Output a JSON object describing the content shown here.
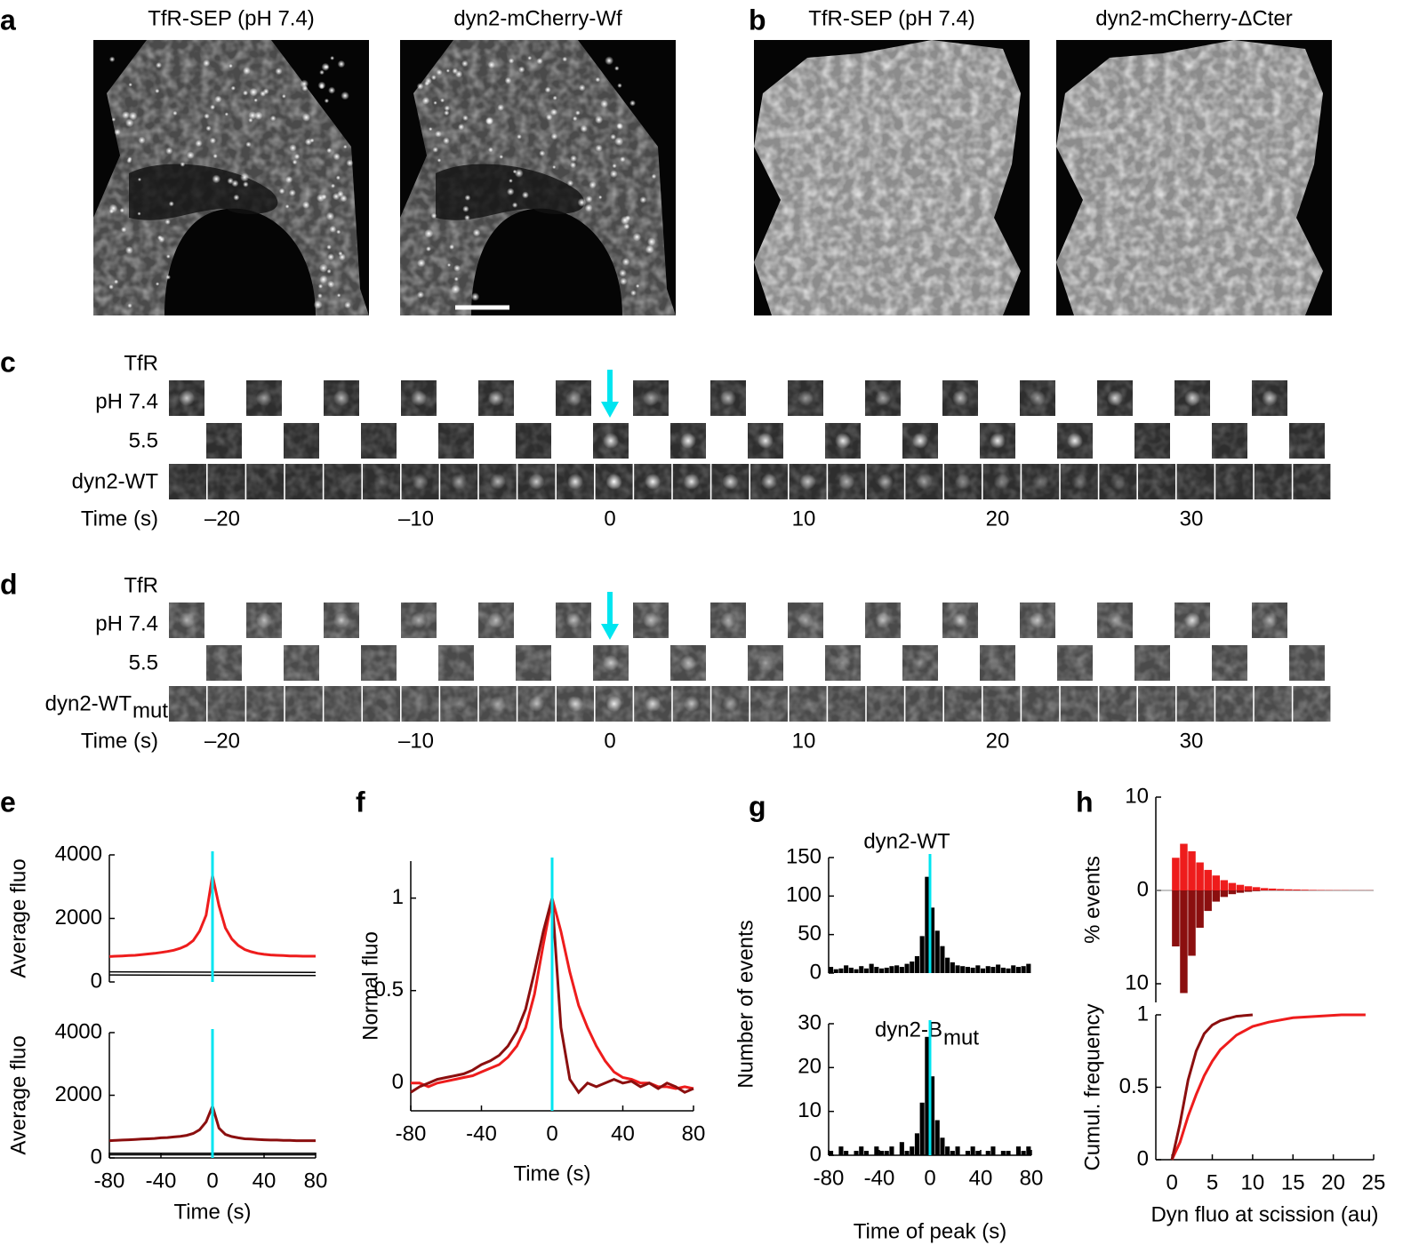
{
  "figure": {
    "panel_labels": [
      "a",
      "b",
      "c",
      "d",
      "e",
      "f",
      "g",
      "h"
    ],
    "images": [
      {
        "title": "TfR-SEP (pH 7.4)",
        "color": "#1f9e3a"
      },
      {
        "title": "dyn2-mCherry-Wf",
        "color": "#ee1c1c"
      },
      {
        "title": "TfR-SEP (pH 7.4)",
        "color": "#1f9e3a"
      },
      {
        "title": "dyn2-mCherry-ΔCter",
        "color": "#9b1fc7"
      }
    ],
    "strips": [
      {
        "channel": "TfR",
        "channel_color": "#1f9e3a",
        "ph_high": "pH 7.4",
        "ph_low": "5.5",
        "protein": "dyn2-WT",
        "protein_color": "#ee1c1c",
        "time_label": "Time (s)",
        "time_ticks": [
          "–20",
          "–10",
          "0",
          "10",
          "20",
          "30"
        ]
      },
      {
        "channel": "TfR",
        "channel_color": "#1f9e3a",
        "ph_high": "pH 7.4",
        "ph_low": "5.5",
        "protein": "dyn2-WT",
        "protein_sub": "mut",
        "protein_color": "#8b0f0f",
        "time_label": "Time (s)",
        "time_ticks": [
          "–20",
          "–10",
          "0",
          "10",
          "20",
          "30"
        ]
      }
    ]
  },
  "chart_data": [
    {
      "type": "line",
      "ylabel": "Average fluo",
      "x": [
        -80,
        -75,
        -70,
        -65,
        -60,
        -55,
        -50,
        -45,
        -40,
        -35,
        -30,
        -25,
        -20,
        -15,
        -10,
        -5,
        0,
        5,
        10,
        15,
        20,
        25,
        30,
        35,
        40,
        45,
        50,
        55,
        60,
        65,
        70,
        75,
        80
      ],
      "xlim": [
        -80,
        80
      ],
      "ylim": [
        0,
        4000
      ],
      "yticks": [
        0,
        2000,
        4000
      ],
      "vline": 0,
      "vline_color": "#00e5f0",
      "series": [
        {
          "color": "#ee1c1c",
          "values": [
            800,
            810,
            820,
            830,
            840,
            860,
            880,
            900,
            930,
            960,
            1000,
            1060,
            1150,
            1300,
            1600,
            2100,
            3350,
            2400,
            1700,
            1350,
            1150,
            1020,
            950,
            900,
            870,
            850,
            840,
            830,
            820,
            820,
            810,
            810,
            810
          ]
        },
        {
          "color": "#000000",
          "x": [
            -80,
            80
          ],
          "values": [
            320,
            300
          ]
        },
        {
          "color": "#000000",
          "x": [
            -80,
            80
          ],
          "values": [
            220,
            200
          ]
        }
      ]
    },
    {
      "type": "line",
      "ylabel": "Average fluo",
      "xlabel": "Time (s)",
      "x": [
        -80,
        -75,
        -70,
        -65,
        -60,
        -55,
        -50,
        -45,
        -40,
        -35,
        -30,
        -25,
        -20,
        -15,
        -10,
        -5,
        0,
        5,
        10,
        15,
        20,
        25,
        30,
        35,
        40,
        45,
        50,
        55,
        60,
        65,
        70,
        75,
        80
      ],
      "xlim": [
        -80,
        80
      ],
      "xticks": [
        -80,
        -40,
        0,
        40,
        80
      ],
      "ylim": [
        0,
        4000
      ],
      "yticks": [
        0,
        2000,
        4000
      ],
      "vline": 0,
      "vline_color": "#00e5f0",
      "series": [
        {
          "color": "#8b0f0f",
          "values": [
            550,
            560,
            570,
            580,
            590,
            600,
            610,
            620,
            640,
            650,
            670,
            690,
            720,
            780,
            900,
            1150,
            1650,
            950,
            750,
            680,
            640,
            610,
            600,
            590,
            580,
            570,
            570,
            560,
            560,
            550,
            550,
            550,
            550
          ]
        },
        {
          "color": "#000000",
          "x": [
            -80,
            80
          ],
          "values": [
            150,
            150
          ]
        },
        {
          "color": "#000000",
          "x": [
            -80,
            80
          ],
          "values": [
            100,
            100
          ]
        }
      ]
    },
    {
      "type": "line",
      "ylabel": "Normal fluo",
      "xlabel": "Time (s)",
      "x": [
        -80,
        -75,
        -70,
        -65,
        -60,
        -55,
        -50,
        -45,
        -40,
        -35,
        -30,
        -25,
        -20,
        -15,
        -10,
        -5,
        0,
        5,
        10,
        15,
        20,
        25,
        30,
        35,
        40,
        45,
        50,
        55,
        60,
        65,
        70,
        75,
        80
      ],
      "xlim": [
        -80,
        80
      ],
      "xticks": [
        -80,
        -40,
        0,
        40,
        80
      ],
      "ylim": [
        -0.15,
        1.2
      ],
      "yticks": [
        0,
        0.5,
        1
      ],
      "vline": 0,
      "vline_color": "#00e5f0",
      "series": [
        {
          "color": "#ee1c1c",
          "values": [
            0,
            0,
            -0.02,
            0,
            0.01,
            0.02,
            0.03,
            0.04,
            0.06,
            0.08,
            0.1,
            0.14,
            0.2,
            0.3,
            0.48,
            0.75,
            1.0,
            0.82,
            0.6,
            0.42,
            0.3,
            0.2,
            0.12,
            0.06,
            0.03,
            0.02,
            0,
            0,
            -0.02,
            -0.02,
            -0.03,
            -0.02,
            -0.03
          ]
        },
        {
          "color": "#8b0f0f",
          "values": [
            -0.05,
            -0.02,
            0,
            0.02,
            0.03,
            0.04,
            0.05,
            0.07,
            0.1,
            0.12,
            0.15,
            0.2,
            0.28,
            0.4,
            0.6,
            0.82,
            1.0,
            0.3,
            0.02,
            -0.05,
            0,
            -0.02,
            0,
            0.02,
            0,
            0.01,
            -0.02,
            0,
            -0.03,
            0,
            -0.02,
            -0.05,
            -0.03
          ]
        }
      ]
    },
    {
      "type": "histogram",
      "title": "dyn2-WT",
      "title_color": "#ee1c1c",
      "bins": [
        -80,
        -76,
        -72,
        -68,
        -64,
        -60,
        -56,
        -52,
        -48,
        -44,
        -40,
        -36,
        -32,
        -28,
        -24,
        -20,
        -16,
        -12,
        -8,
        -4,
        0,
        4,
        8,
        12,
        16,
        20,
        24,
        28,
        32,
        36,
        40,
        44,
        48,
        52,
        56,
        60,
        64,
        68,
        72,
        76,
        80
      ],
      "xlim": [
        -80,
        80
      ],
      "ylim": [
        0,
        150
      ],
      "yticks": [
        0,
        50,
        100,
        150
      ],
      "vline": 0,
      "vline_color": "#00e5f0",
      "series": [
        {
          "color": "#000000",
          "values": [
            8,
            5,
            6,
            10,
            7,
            5,
            9,
            6,
            12,
            8,
            6,
            7,
            9,
            10,
            8,
            12,
            15,
            22,
            48,
            125,
            85,
            55,
            35,
            20,
            14,
            10,
            9,
            8,
            7,
            10,
            6,
            9,
            8,
            11,
            7,
            6,
            10,
            8,
            9,
            12
          ]
        }
      ]
    },
    {
      "type": "histogram",
      "title": "dyn2-B",
      "title_sub": "mut",
      "title_color": "#8b0f0f",
      "ylabel": "Number of events",
      "xlabel": "Time of peak (s)",
      "bins": [
        -80,
        -76,
        -72,
        -68,
        -64,
        -60,
        -56,
        -52,
        -48,
        -44,
        -40,
        -36,
        -32,
        -28,
        -24,
        -20,
        -16,
        -12,
        -8,
        -4,
        0,
        4,
        8,
        12,
        16,
        20,
        24,
        28,
        32,
        36,
        40,
        44,
        48,
        52,
        56,
        60,
        64,
        68,
        72,
        76,
        80
      ],
      "xlim": [
        -80,
        80
      ],
      "xticks": [
        -80,
        -40,
        0,
        40,
        80
      ],
      "ylim": [
        0,
        30
      ],
      "yticks": [
        0,
        10,
        20,
        30
      ],
      "vline": 0,
      "vline_color": "#00e5f0",
      "series": [
        {
          "color": "#000000",
          "values": [
            1,
            0,
            2,
            1,
            0,
            1,
            2,
            1,
            0,
            2,
            1,
            1,
            2,
            0,
            3,
            1,
            2,
            5,
            12,
            27,
            18,
            8,
            4,
            2,
            1,
            2,
            0,
            1,
            2,
            1,
            0,
            1,
            2,
            0,
            1,
            1,
            0,
            2,
            1,
            2
          ]
        }
      ]
    },
    {
      "type": "histogram",
      "ylabel": "% events",
      "bins": [
        0,
        1,
        2,
        3,
        4,
        5,
        6,
        7,
        8,
        9,
        10,
        11,
        12,
        13,
        14,
        15,
        16,
        17,
        18,
        19,
        20,
        21,
        22,
        23,
        24,
        25
      ],
      "xlim": [
        -2,
        25
      ],
      "ylim": [
        -12,
        10
      ],
      "yticks": [
        10,
        0,
        {
          "value": -10,
          "label": "10"
        }
      ],
      "series": [
        {
          "color": "#ee1c1c",
          "values": [
            3.5,
            5,
            4.2,
            3,
            2.2,
            1.6,
            1.1,
            0.8,
            0.6,
            0.45,
            0.35,
            0.25,
            0.2,
            0.15,
            0.12,
            0.1,
            0.08,
            0.06,
            0.05,
            0.04,
            0.03,
            0.03,
            0.02,
            0.02,
            0.02
          ]
        },
        {
          "color": "#8b0f0f",
          "values": [
            -6,
            -11,
            -7,
            -4,
            -2.2,
            -1.2,
            -0.7,
            -0.4,
            -0.25,
            -0.15,
            -0.08,
            0,
            0,
            0,
            0,
            0,
            0,
            0,
            0,
            0,
            0,
            0,
            0,
            0,
            0
          ]
        }
      ]
    },
    {
      "type": "line",
      "ylabel": "Cumul. frequency",
      "xlabel": "Dyn fluo at scission (au)",
      "xlim": [
        -2,
        25
      ],
      "xticks": [
        0,
        5,
        10,
        15,
        20,
        25
      ],
      "ylim": [
        0,
        1
      ],
      "yticks": [
        0,
        0.5,
        1
      ],
      "series": [
        {
          "color": "#ee1c1c",
          "x": [
            0,
            1,
            2,
            3,
            4,
            5,
            6,
            8,
            10,
            12,
            15,
            18,
            21,
            24
          ],
          "values": [
            0,
            0.12,
            0.3,
            0.45,
            0.58,
            0.68,
            0.76,
            0.86,
            0.92,
            0.95,
            0.98,
            0.99,
            1,
            1
          ]
        },
        {
          "color": "#8b0f0f",
          "x": [
            0,
            1,
            2,
            3,
            4,
            5,
            6,
            8,
            10
          ],
          "values": [
            0,
            0.25,
            0.55,
            0.75,
            0.87,
            0.93,
            0.96,
            0.99,
            1
          ]
        }
      ]
    }
  ]
}
